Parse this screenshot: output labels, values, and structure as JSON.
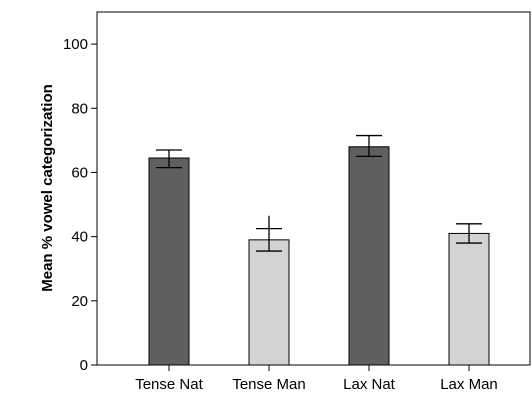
{
  "chart_data": {
    "type": "bar",
    "title": "",
    "xlabel": "",
    "ylabel": "Mean % vowel categorization",
    "ylim": [
      0,
      110
    ],
    "yticks": [
      0,
      20,
      40,
      60,
      80,
      100
    ],
    "grid": false,
    "categories": [
      "Tense Nat",
      "Tense Man",
      "Lax Nat",
      "Lax Man"
    ],
    "values": [
      64.5,
      39,
      68,
      41
    ],
    "error_low": [
      61.5,
      35.5,
      65,
      38
    ],
    "error_high": [
      67,
      42.5,
      71.5,
      44
    ],
    "outliers": [
      null,
      46.5,
      null,
      null
    ],
    "colors": [
      "#5f5f5f",
      "#d3d3d3",
      "#5f5f5f",
      "#d3d3d3"
    ]
  }
}
